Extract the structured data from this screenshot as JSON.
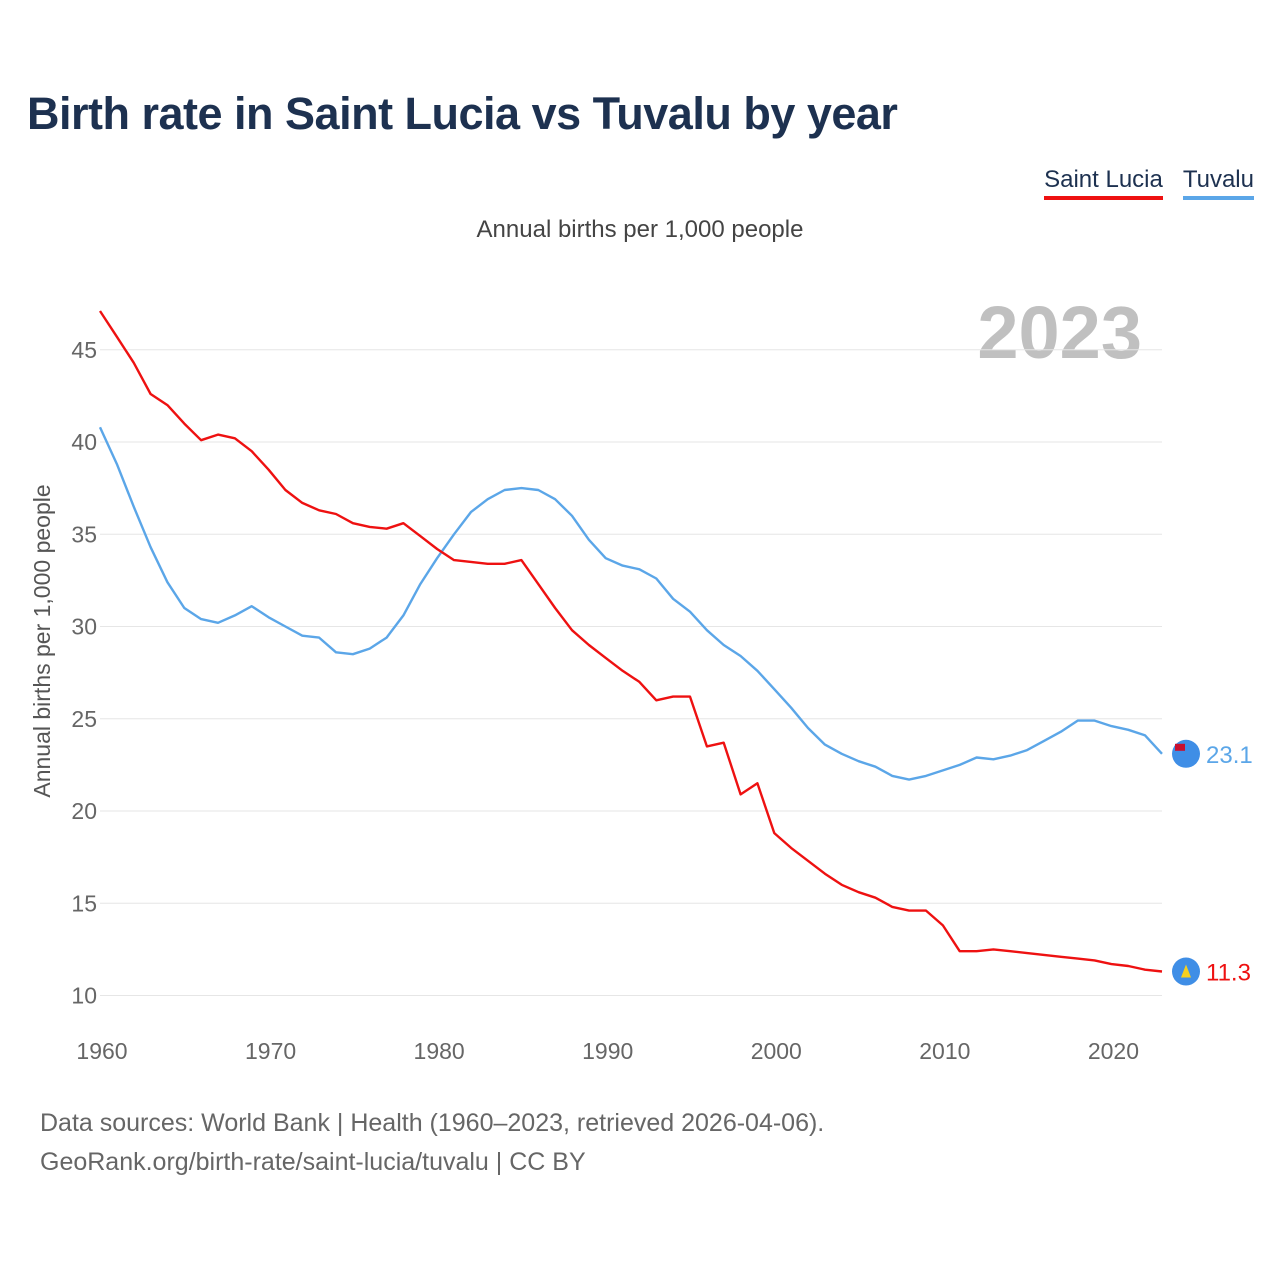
{
  "title": "Birth rate in Saint Lucia vs Tuvalu by year",
  "subtitle": "Annual births per 1,000 people",
  "year_label": "2023",
  "legend": [
    {
      "name": "Saint Lucia",
      "color": "#ee1111"
    },
    {
      "name": "Tuvalu",
      "color": "#5ba6e8"
    }
  ],
  "footer": {
    "source": "Data sources: World Bank | Health (1960–2023, retrieved 2026-04-06).",
    "credit": "GeoRank.org/birth-rate/saint-lucia/tuvalu | CC BY"
  },
  "chart_data": {
    "type": "line",
    "title": "Birth rate in Saint Lucia vs Tuvalu by year",
    "xlabel": "",
    "ylabel": "Annual births per 1,000 people",
    "xlim": [
      1960,
      2023
    ],
    "ylim": [
      10,
      47
    ],
    "yticks": [
      10,
      15,
      20,
      25,
      30,
      35,
      40,
      45
    ],
    "xticks": [
      1960,
      1970,
      1980,
      1990,
      2000,
      2010,
      2020
    ],
    "x": [
      1960,
      1961,
      1962,
      1963,
      1964,
      1965,
      1966,
      1967,
      1968,
      1969,
      1970,
      1971,
      1972,
      1973,
      1974,
      1975,
      1976,
      1977,
      1978,
      1979,
      1980,
      1981,
      1982,
      1983,
      1984,
      1985,
      1986,
      1987,
      1988,
      1989,
      1990,
      1991,
      1992,
      1993,
      1994,
      1995,
      1996,
      1997,
      1998,
      1999,
      2000,
      2001,
      2002,
      2003,
      2004,
      2005,
      2006,
      2007,
      2008,
      2009,
      2010,
      2011,
      2012,
      2013,
      2014,
      2015,
      2016,
      2017,
      2018,
      2019,
      2020,
      2021,
      2022,
      2023
    ],
    "series": [
      {
        "name": "Saint Lucia",
        "color": "#ee1111",
        "end_label": "11.3",
        "values": [
          47.1,
          45.7,
          44.3,
          42.6,
          42.0,
          41.0,
          40.1,
          40.4,
          40.2,
          39.5,
          38.5,
          37.4,
          36.7,
          36.3,
          36.1,
          35.6,
          35.4,
          35.3,
          35.6,
          34.9,
          34.2,
          33.6,
          33.5,
          33.4,
          33.4,
          33.6,
          32.3,
          31.0,
          29.8,
          29.0,
          28.3,
          27.6,
          27.0,
          26.0,
          26.2,
          26.2,
          23.5,
          23.7,
          20.9,
          21.5,
          18.8,
          18.0,
          17.3,
          16.6,
          16.0,
          15.6,
          15.3,
          14.8,
          14.6,
          14.6,
          13.8,
          12.4,
          12.4,
          12.5,
          12.4,
          12.3,
          12.2,
          12.1,
          12.0,
          11.9,
          11.7,
          11.6,
          11.4,
          11.3
        ]
      },
      {
        "name": "Tuvalu",
        "color": "#5ba6e8",
        "end_label": "23.1",
        "values": [
          40.8,
          38.8,
          36.5,
          34.3,
          32.4,
          31.0,
          30.4,
          30.2,
          30.6,
          31.1,
          30.5,
          30.0,
          29.5,
          29.4,
          28.6,
          28.5,
          28.8,
          29.4,
          30.6,
          32.3,
          33.7,
          35.0,
          36.2,
          36.9,
          37.4,
          37.5,
          37.4,
          36.9,
          36.0,
          34.7,
          33.7,
          33.3,
          33.1,
          32.6,
          31.5,
          30.8,
          29.8,
          29.0,
          28.4,
          27.6,
          26.6,
          25.6,
          24.5,
          23.6,
          23.1,
          22.7,
          22.4,
          21.9,
          21.7,
          21.9,
          22.2,
          22.5,
          22.9,
          22.8,
          23.0,
          23.3,
          23.8,
          24.3,
          24.9,
          24.9,
          24.6,
          24.4,
          24.1,
          23.1
        ]
      }
    ]
  }
}
